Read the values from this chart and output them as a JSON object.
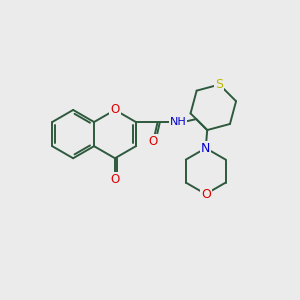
{
  "background_color": "#ebebeb",
  "bond_color": "#2d5a3d",
  "bond_width": 1.4,
  "atom_colors": {
    "O": "#dd0000",
    "N": "#0000cc",
    "S": "#bbbb00",
    "H_gray": "#6a7a7a"
  },
  "figsize": [
    3.0,
    3.0
  ],
  "dpi": 100
}
